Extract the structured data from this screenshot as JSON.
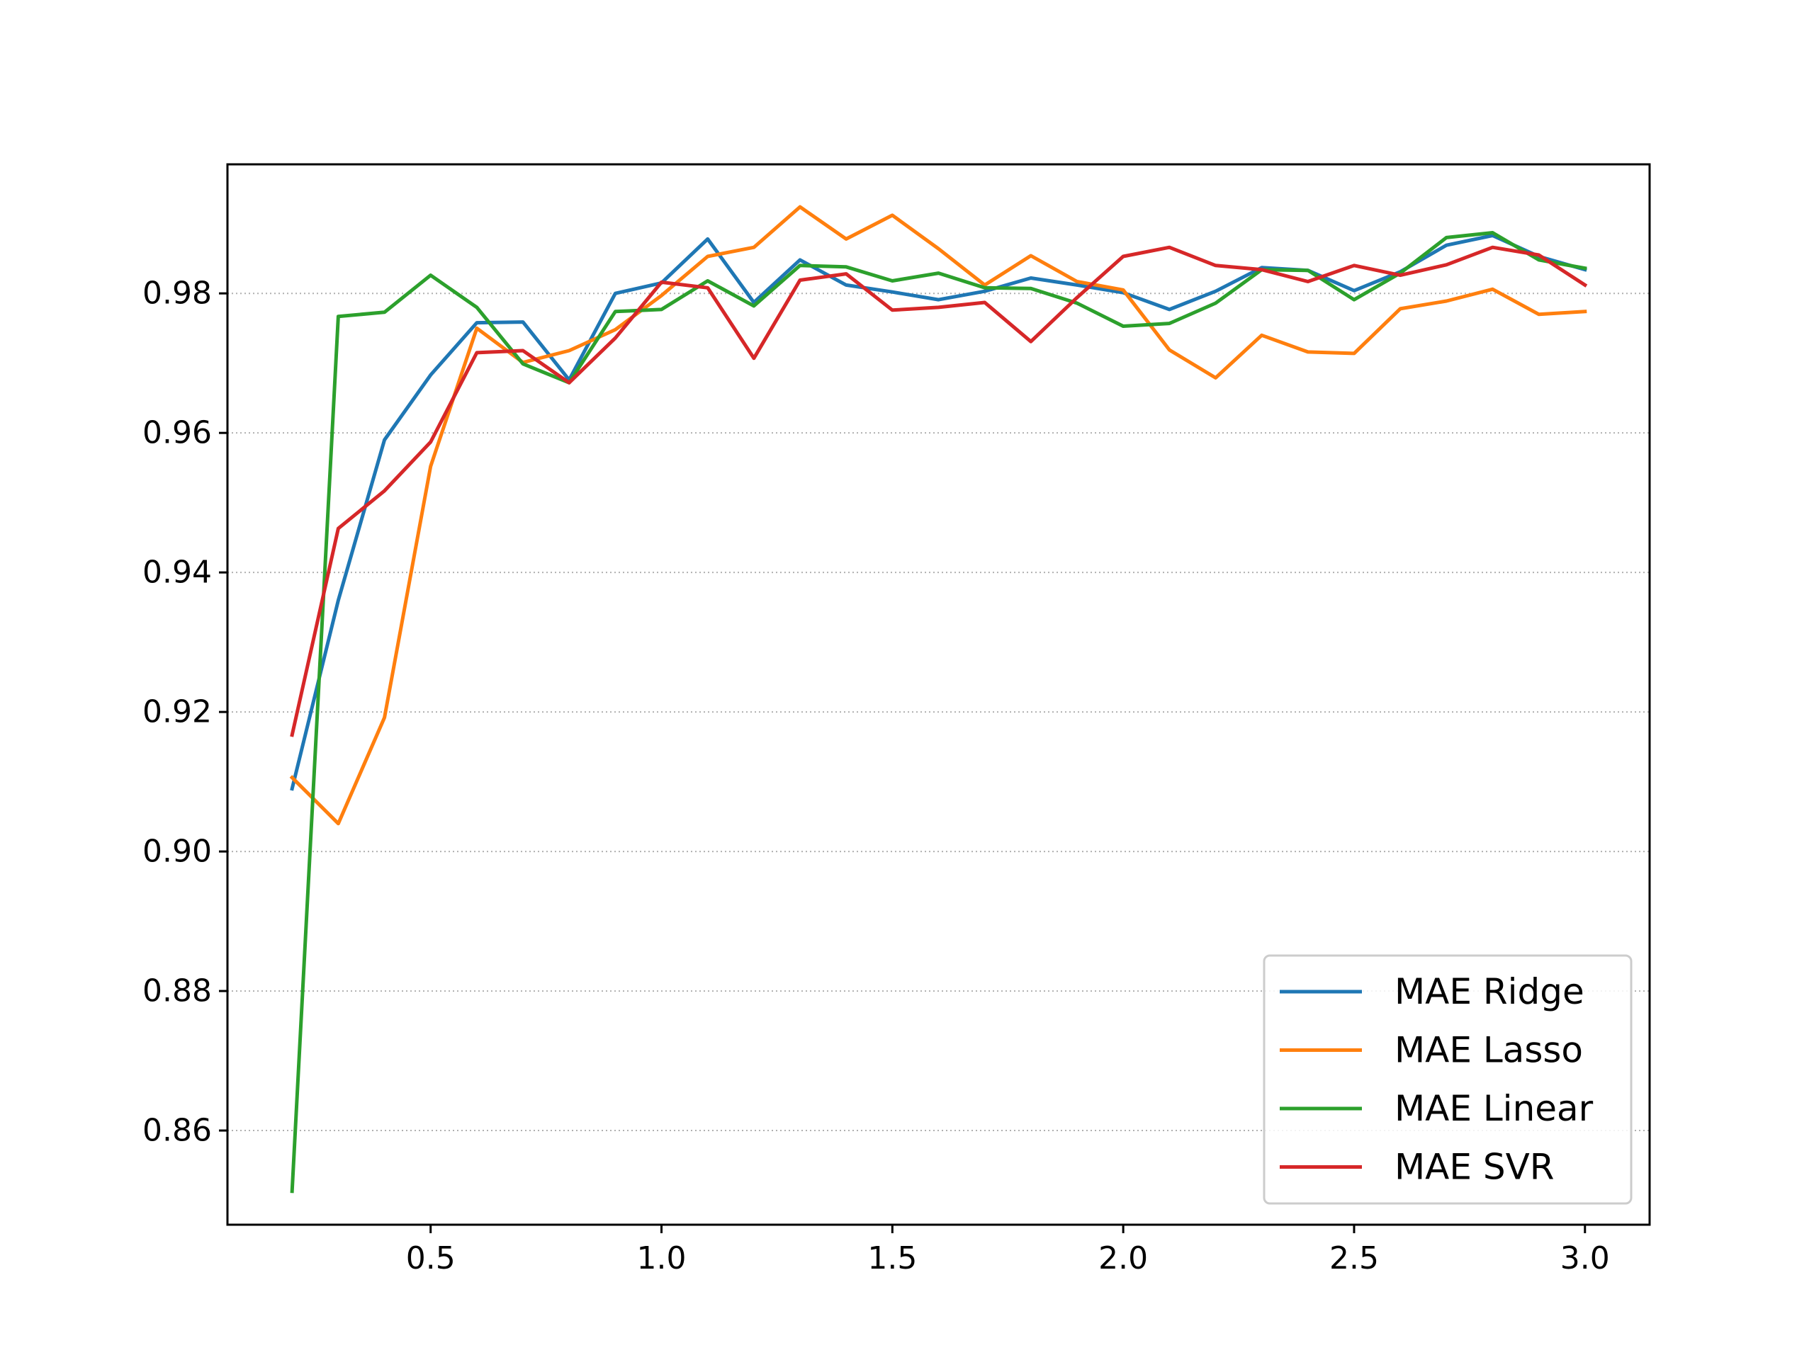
{
  "chart_data": {
    "type": "line",
    "title": "",
    "xlabel": "",
    "ylabel": "",
    "xlim": [
      0.06,
      3.14
    ],
    "ylim": [
      0.8465,
      0.9985
    ],
    "xticks": [
      0.5,
      1.0,
      1.5,
      2.0,
      2.5,
      3.0
    ],
    "xtick_labels": [
      "0.5",
      "1.0",
      "1.5",
      "2.0",
      "2.5",
      "3.0"
    ],
    "yticks": [
      0.86,
      0.88,
      0.9,
      0.92,
      0.94,
      0.96,
      0.98
    ],
    "ytick_labels": [
      "0.86",
      "0.88",
      "0.90",
      "0.92",
      "0.94",
      "0.96",
      "0.98"
    ],
    "grid": "horizontal dotted",
    "legend_position": "lower-right",
    "x": [
      0.2,
      0.3,
      0.4,
      0.5,
      0.6,
      0.7,
      0.8,
      0.9,
      1.0,
      1.1,
      1.2,
      1.3,
      1.4,
      1.5,
      1.6,
      1.7,
      1.8,
      1.9,
      2.0,
      2.1,
      2.2,
      2.3,
      2.4,
      2.5,
      2.6,
      2.7,
      2.8,
      2.9,
      3.0
    ],
    "series": [
      {
        "name": "MAE Ridge",
        "color": "#1f77b4",
        "values": [
          0.909,
          0.936,
          0.959,
          0.9683,
          0.9758,
          0.9759,
          0.9676,
          0.98,
          0.9815,
          0.9878,
          0.9787,
          0.9848,
          0.9812,
          0.9802,
          0.9791,
          0.9803,
          0.9822,
          0.9812,
          0.9801,
          0.9777,
          0.9803,
          0.9837,
          0.9833,
          0.9804,
          0.9831,
          0.9869,
          0.9883,
          0.9853,
          0.9834
        ]
      },
      {
        "name": "MAE Lasso",
        "color": "#ff7f0e",
        "values": [
          0.9106,
          0.904,
          0.9192,
          0.9552,
          0.975,
          0.9701,
          0.9718,
          0.9748,
          0.9797,
          0.9853,
          0.9866,
          0.9924,
          0.9878,
          0.9912,
          0.9864,
          0.9812,
          0.9854,
          0.9817,
          0.9805,
          0.9719,
          0.9679,
          0.974,
          0.9716,
          0.9714,
          0.9778,
          0.9789,
          0.9806,
          0.977,
          0.9774
        ]
      },
      {
        "name": "MAE Linear",
        "color": "#2ca02c",
        "values": [
          0.8513,
          0.9767,
          0.9773,
          0.9826,
          0.978,
          0.9699,
          0.9672,
          0.9774,
          0.9777,
          0.9818,
          0.9782,
          0.984,
          0.9838,
          0.9818,
          0.9829,
          0.9808,
          0.9807,
          0.9786,
          0.9753,
          0.9757,
          0.9786,
          0.9834,
          0.9833,
          0.9791,
          0.9829,
          0.988,
          0.9887,
          0.9848,
          0.9836
        ]
      },
      {
        "name": "MAE SVR",
        "color": "#d62728",
        "values": [
          0.9167,
          0.9463,
          0.9517,
          0.9587,
          0.9715,
          0.9718,
          0.9672,
          0.9736,
          0.9816,
          0.9808,
          0.9707,
          0.9819,
          0.9828,
          0.9776,
          0.978,
          0.9787,
          0.9731,
          0.9794,
          0.9853,
          0.9866,
          0.984,
          0.9834,
          0.9817,
          0.984,
          0.9826,
          0.9841,
          0.9866,
          0.9855,
          0.9812
        ]
      }
    ]
  }
}
